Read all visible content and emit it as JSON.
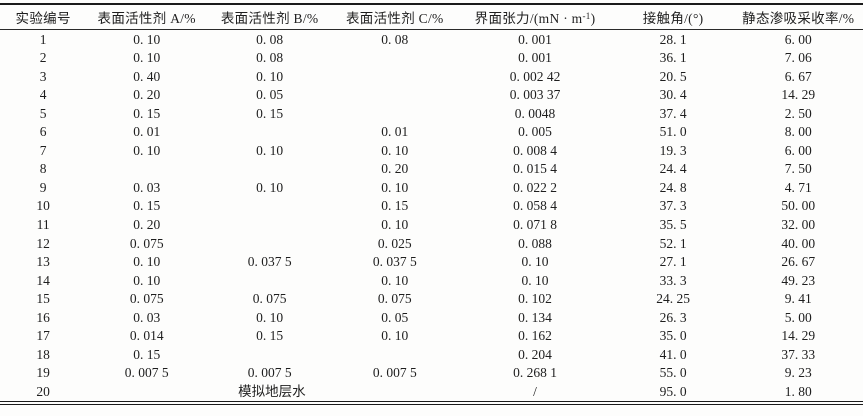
{
  "table": {
    "headers": {
      "experiment_no": "实验编号",
      "surfactant_a": "表面活性剂 A/%",
      "surfactant_b": "表面活性剂 B/%",
      "surfactant_c": "表面活性剂 C/%",
      "interfacial_tension": {
        "base": "界面张力/(mN · m",
        "sup": "-1",
        "close": ")"
      },
      "contact_angle": "接触角/(°)",
      "recovery": "静态渗吸采收率/%"
    },
    "rows": [
      [
        "1",
        "0. 10",
        "0. 08",
        "0. 08",
        "0. 001",
        "28. 1",
        "6. 00"
      ],
      [
        "2",
        "0. 10",
        "0. 08",
        "",
        "0. 001",
        "36. 1",
        "7. 06"
      ],
      [
        "3",
        "0. 40",
        "0. 10",
        "",
        "0. 002 42",
        "20. 5",
        "6. 67"
      ],
      [
        "4",
        "0. 20",
        "0. 05",
        "",
        "0. 003 37",
        "30. 4",
        "14. 29"
      ],
      [
        "5",
        "0. 15",
        "0. 15",
        "",
        "0. 0048",
        "37. 4",
        "2. 50"
      ],
      [
        "6",
        "0. 01",
        "",
        "0. 01",
        "0. 005",
        "51. 0",
        "8. 00"
      ],
      [
        "7",
        "0. 10",
        "0. 10",
        "0. 10",
        "0. 008 4",
        "19. 3",
        "6. 00"
      ],
      [
        "8",
        "",
        "",
        "0. 20",
        "0. 015 4",
        "24. 4",
        "7. 50"
      ],
      [
        "9",
        "0. 03",
        "0. 10",
        "0. 10",
        "0. 022 2",
        "24. 8",
        "4. 71"
      ],
      [
        "10",
        "0. 15",
        "",
        "0. 15",
        "0. 058 4",
        "37. 3",
        "50. 00"
      ],
      [
        "11",
        "0. 20",
        "",
        "0. 10",
        "0. 071 8",
        "35. 5",
        "32. 00"
      ],
      [
        "12",
        "0. 075",
        "",
        "0. 025",
        "0. 088",
        "52. 1",
        "40. 00"
      ],
      [
        "13",
        "0. 10",
        "0. 037 5",
        "0. 037 5",
        "0. 10",
        "27. 1",
        "26. 67"
      ],
      [
        "14",
        "0. 10",
        "",
        "0. 10",
        "0. 10",
        "33. 3",
        "49. 23"
      ],
      [
        "15",
        "0. 075",
        "0. 075",
        "0. 075",
        "0. 102",
        "24. 25",
        "9. 41"
      ],
      [
        "16",
        "0. 03",
        "0. 10",
        "0. 05",
        "0. 134",
        "26. 3",
        "5. 00"
      ],
      [
        "17",
        "0. 014",
        "0. 15",
        "0. 10",
        "0. 162",
        "35. 0",
        "14. 29"
      ],
      [
        "18",
        "0. 15",
        "",
        "",
        "0. 204",
        "41. 0",
        "37. 33"
      ],
      [
        "19",
        "0. 007 5",
        "0. 007 5",
        "0. 007 5",
        "0. 268 1",
        "55. 0",
        "9. 23"
      ]
    ],
    "last_row": {
      "no": "20",
      "merged_text": "模拟地层水",
      "tension": "/",
      "angle": "95. 0",
      "recovery": "1. 80"
    }
  }
}
